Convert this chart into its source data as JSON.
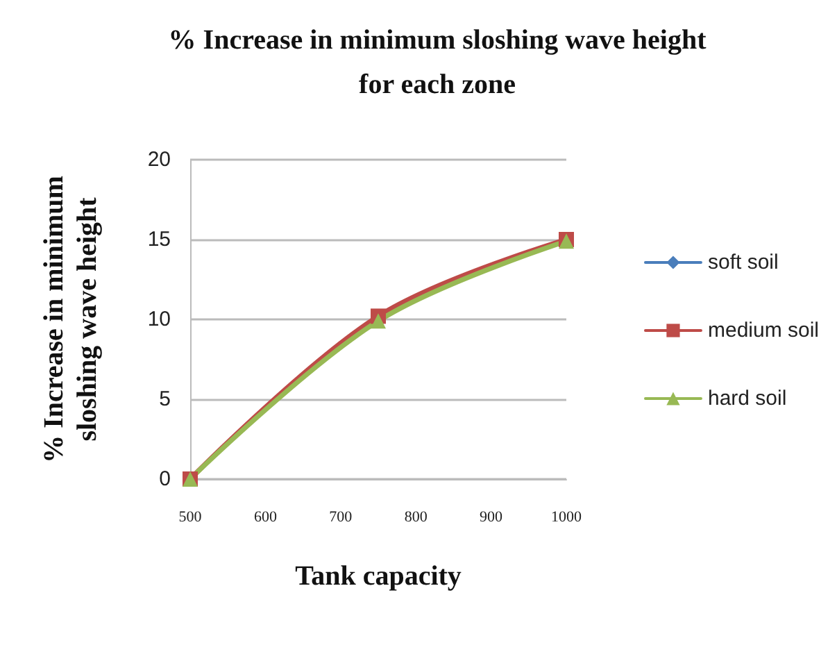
{
  "chart_data": {
    "type": "line",
    "title": "% Increase in minimum sloshing wave height\nfor each zone",
    "xlabel": "Tank capacity",
    "ylabel": "% Increase in minimum\nsloshing wave height",
    "x": [
      500,
      750,
      1000
    ],
    "series": [
      {
        "name": "soft soil",
        "color": "#4a7ebb",
        "marker": "diamond",
        "values": [
          null,
          null,
          null
        ]
      },
      {
        "name": "medium soil",
        "color": "#be4b48",
        "marker": "square",
        "values": [
          0,
          10.2,
          15
        ]
      },
      {
        "name": "hard soil",
        "color": "#98b954",
        "marker": "triangle",
        "values": [
          0,
          9.9,
          14.9
        ]
      }
    ],
    "xlim": [
      500,
      1000
    ],
    "xticks": [
      500,
      600,
      700,
      800,
      900,
      1000
    ],
    "ylim": [
      0,
      20
    ],
    "yticks": [
      0,
      5,
      10,
      15,
      20
    ],
    "grid": "y",
    "legend": "right",
    "line_style": "solid"
  }
}
